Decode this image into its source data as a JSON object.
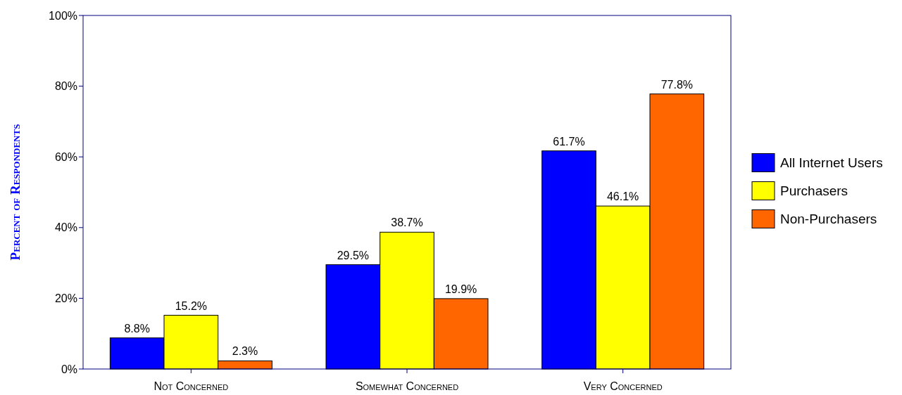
{
  "chart_data": {
    "type": "bar",
    "ylabel": "Percent of Respondents",
    "categories": [
      "Not Concerned",
      "Somewhat Concerned",
      "Very Concerned"
    ],
    "series": [
      {
        "name": "All Internet Users",
        "color": "#0000ff",
        "values": [
          8.8,
          29.5,
          61.7
        ]
      },
      {
        "name": "Purchasers",
        "color": "#ffff00",
        "values": [
          15.2,
          38.7,
          46.1
        ]
      },
      {
        "name": "Non-Purchasers",
        "color": "#ff6600",
        "values": [
          2.3,
          19.9,
          77.8
        ]
      }
    ],
    "ylim": [
      0,
      100
    ],
    "yticks": [
      {
        "value": 0,
        "label": "0%"
      },
      {
        "value": 20,
        "label": "20%"
      },
      {
        "value": 40,
        "label": "40%"
      },
      {
        "value": 60,
        "label": "60%"
      },
      {
        "value": 80,
        "label": "80%"
      },
      {
        "value": 100,
        "label": "100%"
      }
    ],
    "value_labels": [
      [
        "8.8%",
        "29.5%",
        "61.7%"
      ],
      [
        "15.2%",
        "38.7%",
        "46.1%"
      ],
      [
        "2.3%",
        "19.9%",
        "77.8%"
      ]
    ],
    "grid": false,
    "legend": "right"
  }
}
